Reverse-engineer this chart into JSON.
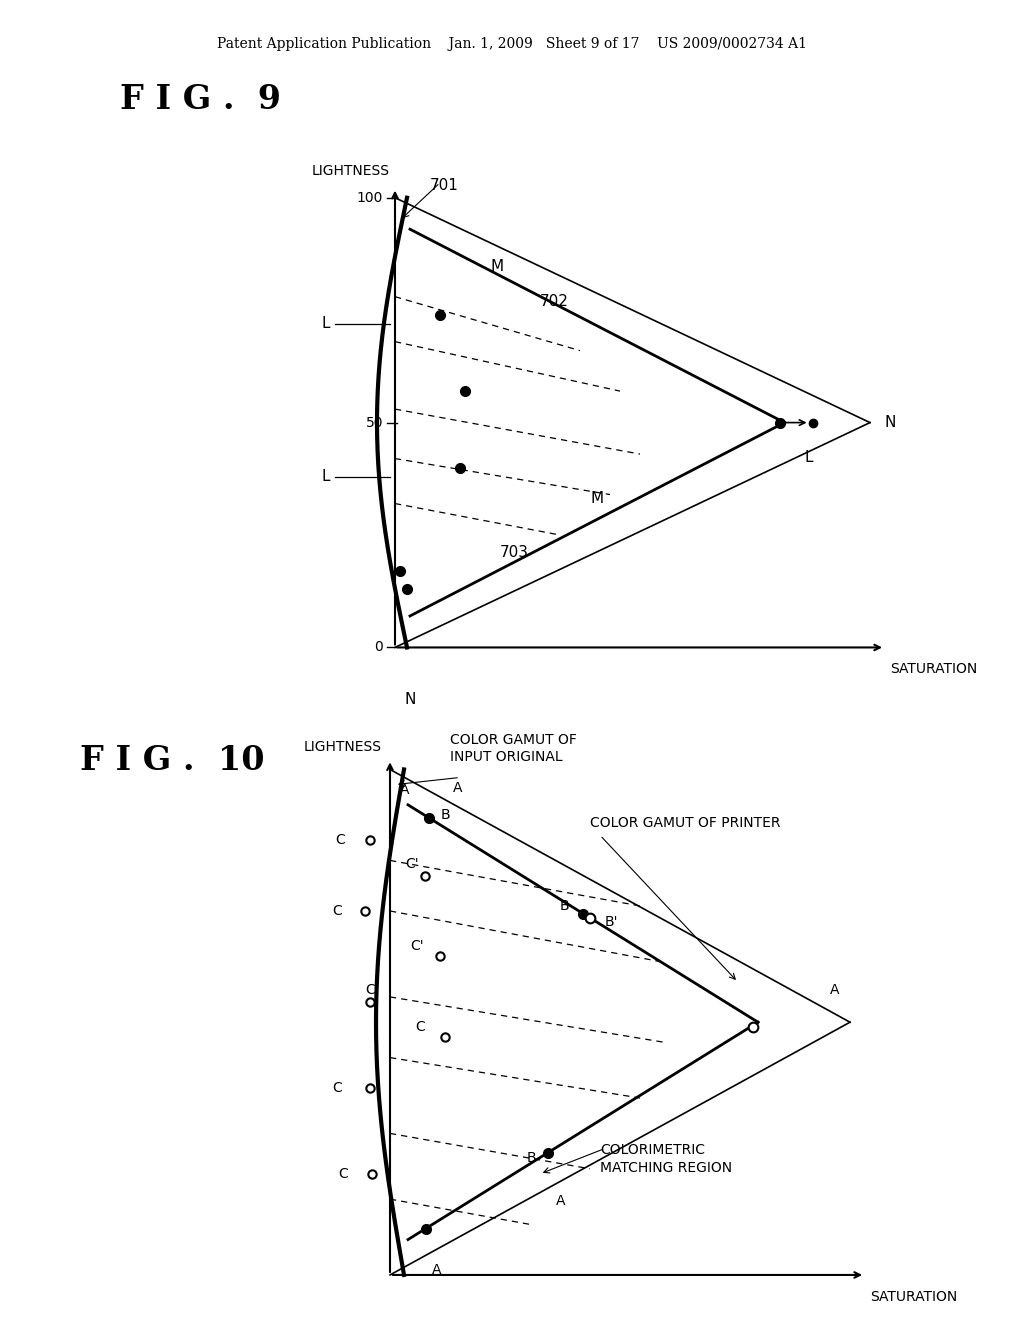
{
  "bg_color": "#ffffff",
  "header": "Patent Application Publication    Jan. 1, 2009   Sheet 9 of 17    US 2009/0002734 A1",
  "fig9_title": "F I G .  9",
  "fig10_title": "F I G .  10"
}
